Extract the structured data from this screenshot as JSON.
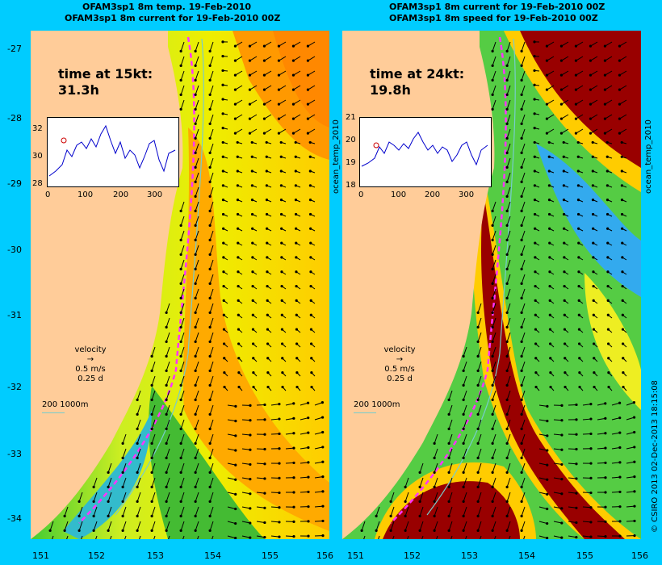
{
  "left": {
    "title1": "OFAM3sp1 8m temp. 19-Feb-2010",
    "title2": "OFAM3sp1 8m current for 19-Feb-2010 00Z",
    "time_label": "time at 15kt:",
    "time_value": "31.3h",
    "inset_y": [
      "32",
      "30",
      "28"
    ],
    "inset_x": [
      "0",
      "100",
      "200",
      "300"
    ],
    "side_label": "ocean_temp_2010"
  },
  "right": {
    "title1": "OFAM3sp1 8m current for 19-Feb-2010 00Z",
    "title2": "OFAM3sp1 8m speed for 19-Feb-2010 00Z",
    "time_label": "time at 24kt:",
    "time_value": "19.8h",
    "inset_y": [
      "21",
      "20",
      "19",
      "18"
    ],
    "inset_x": [
      "0",
      "100",
      "200",
      "300"
    ],
    "side_label": "ocean_temp_2010"
  },
  "legend": {
    "velocity": "velocity",
    "speed": "0.5 m/s",
    "days": "0.25 d",
    "contours": "200  1000m"
  },
  "lat_ticks": [
    "-27",
    "-28",
    "-29",
    "-30",
    "-31",
    "-32",
    "-33",
    "-34"
  ],
  "lon_ticks": [
    "151",
    "152",
    "153",
    "154",
    "155",
    "156"
  ],
  "credit": "© CSIRO 2013   02-Dec-2013 18:15:08",
  "colors": {
    "background": "#00ccff",
    "land": "#ffcc99",
    "route": "#ff33ff",
    "contour": "#77cccc"
  }
}
